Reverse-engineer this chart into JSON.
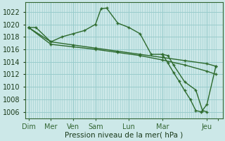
{
  "xlabel": "Pression niveau de la mer( hPa )",
  "bg_color": "#cce8e8",
  "grid_color": "#99cccc",
  "line_color": "#2d6a2d",
  "ylim": [
    1005.0,
    1023.5
  ],
  "yticks": [
    1006,
    1008,
    1010,
    1012,
    1014,
    1016,
    1018,
    1020,
    1022
  ],
  "series": [
    {
      "x": [
        0,
        0.33,
        1,
        1.5,
        2,
        2.5,
        3,
        3.25,
        3.5,
        4,
        4.5,
        5,
        5.5,
        6,
        6.25,
        6.5,
        7,
        7.5,
        7.8,
        8.0
      ],
      "y": [
        1019.5,
        1019.5,
        1017.2,
        1018.0,
        1018.5,
        1019.0,
        1020.0,
        1022.5,
        1022.6,
        1020.2,
        1019.5,
        1018.5,
        1015.2,
        1015.2,
        1015.0,
        1013.5,
        1010.8,
        1009.5,
        1006.2,
        1006.0
      ]
    },
    {
      "x": [
        0,
        1,
        2,
        3,
        4,
        5,
        6,
        7,
        8,
        8.4
      ],
      "y": [
        1019.5,
        1017.2,
        1016.7,
        1016.2,
        1015.7,
        1015.2,
        1014.7,
        1014.2,
        1013.7,
        1013.3
      ]
    },
    {
      "x": [
        0,
        1,
        2,
        3,
        4,
        5,
        6,
        7,
        8,
        8.4
      ],
      "y": [
        1019.5,
        1016.8,
        1016.4,
        1016.0,
        1015.5,
        1015.0,
        1014.3,
        1013.5,
        1012.5,
        1012.0
      ]
    },
    {
      "x": [
        6,
        6.25,
        6.5,
        6.75,
        7.0,
        7.25,
        7.5,
        7.75,
        8.0,
        8.4
      ],
      "y": [
        1015.2,
        1013.8,
        1012.3,
        1010.9,
        1009.4,
        1008.0,
        1006.2,
        1006.0,
        1007.2,
        1013.3
      ]
    }
  ],
  "day_x": [
    0,
    1,
    2,
    3,
    4.5,
    6,
    8.0,
    8.5
  ],
  "day_labels": [
    "Dim",
    "Mer",
    "Ven",
    "Sam",
    "Lun",
    "Mar",
    "Jeu",
    ""
  ],
  "vline_x": [
    0,
    1,
    2,
    3,
    4.5,
    6,
    8.0
  ],
  "xlim": [
    -0.15,
    8.7
  ],
  "xlabel_size": 7.5,
  "tick_label_size": 7
}
